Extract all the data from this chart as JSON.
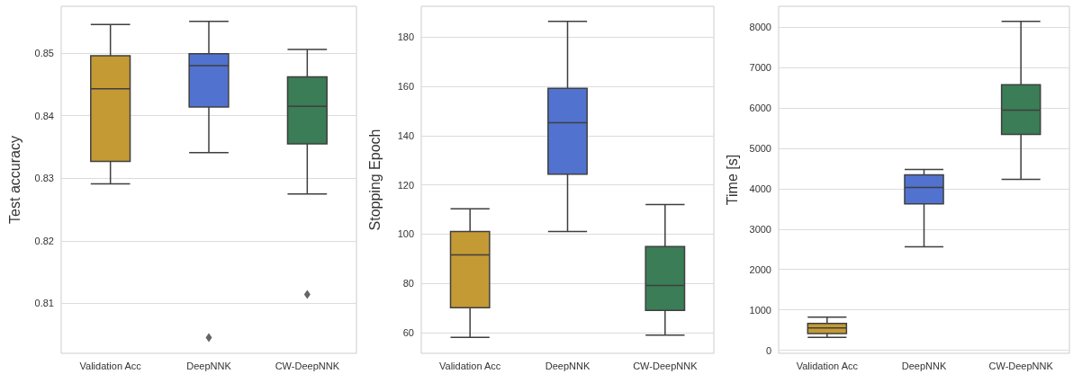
{
  "chart_data": [
    {
      "type": "box",
      "ylabel": "Test accuracy",
      "categories": [
        "Validation Acc",
        "DeepNNK",
        "CW-DeepNNK"
      ],
      "colors": [
        "#c49a35",
        "#5272d0",
        "#3a7d56"
      ],
      "ylim": [
        0.802,
        0.8575
      ],
      "yticks": [
        0.81,
        0.82,
        0.83,
        0.84,
        0.85
      ],
      "grid": "y",
      "boxes": [
        {
          "low": 0.8291,
          "q1": 0.8327,
          "median": 0.8443,
          "q3": 0.8496,
          "high": 0.8546
        },
        {
          "low": 0.8341,
          "q1": 0.8414,
          "median": 0.848,
          "q3": 0.8499,
          "high": 0.8551,
          "outliers": [
            0.8045
          ]
        },
        {
          "low": 0.8275,
          "q1": 0.8355,
          "median": 0.8415,
          "q3": 0.8462,
          "high": 0.8506,
          "outliers": [
            0.8114
          ]
        }
      ]
    },
    {
      "type": "box",
      "ylabel": "Stopping Epoch",
      "categories": [
        "Validation Acc",
        "DeepNNK",
        "CW-DeepNNK"
      ],
      "colors": [
        "#c49a35",
        "#5272d0",
        "#3a7d56"
      ],
      "ylim": [
        51.7,
        192.4
      ],
      "yticks": [
        60,
        80,
        100,
        120,
        140,
        160,
        180
      ],
      "grid": "y",
      "boxes": [
        {
          "low": 58.2,
          "q1": 70.2,
          "median": 91.6,
          "q3": 101.1,
          "high": 110.3
        },
        {
          "low": 101.1,
          "q1": 124.3,
          "median": 145.2,
          "q3": 159.1,
          "high": 186.3
        },
        {
          "low": 59.1,
          "q1": 69.1,
          "median": 79.2,
          "q3": 95,
          "high": 112
        }
      ]
    },
    {
      "type": "box",
      "ylabel": "Time [s]",
      "categories": [
        "Validation Acc",
        "DeepNNK",
        "CW-DeepNNK"
      ],
      "colors": [
        "#c49a35",
        "#5272d0",
        "#3a7d56"
      ],
      "ylim": [
        -74,
        8511
      ],
      "yticks": [
        0,
        1000,
        2000,
        3000,
        4000,
        5000,
        6000,
        7000,
        8000
      ],
      "grid": "y",
      "boxes": [
        {
          "low": 319,
          "q1": 415,
          "median": 556,
          "q3": 667,
          "high": 823
        },
        {
          "low": 2562,
          "q1": 3622,
          "median": 4030,
          "q3": 4341,
          "high": 4477
        },
        {
          "low": 4228,
          "q1": 5340,
          "median": 5940,
          "q3": 6569,
          "high": 8141
        }
      ]
    }
  ]
}
